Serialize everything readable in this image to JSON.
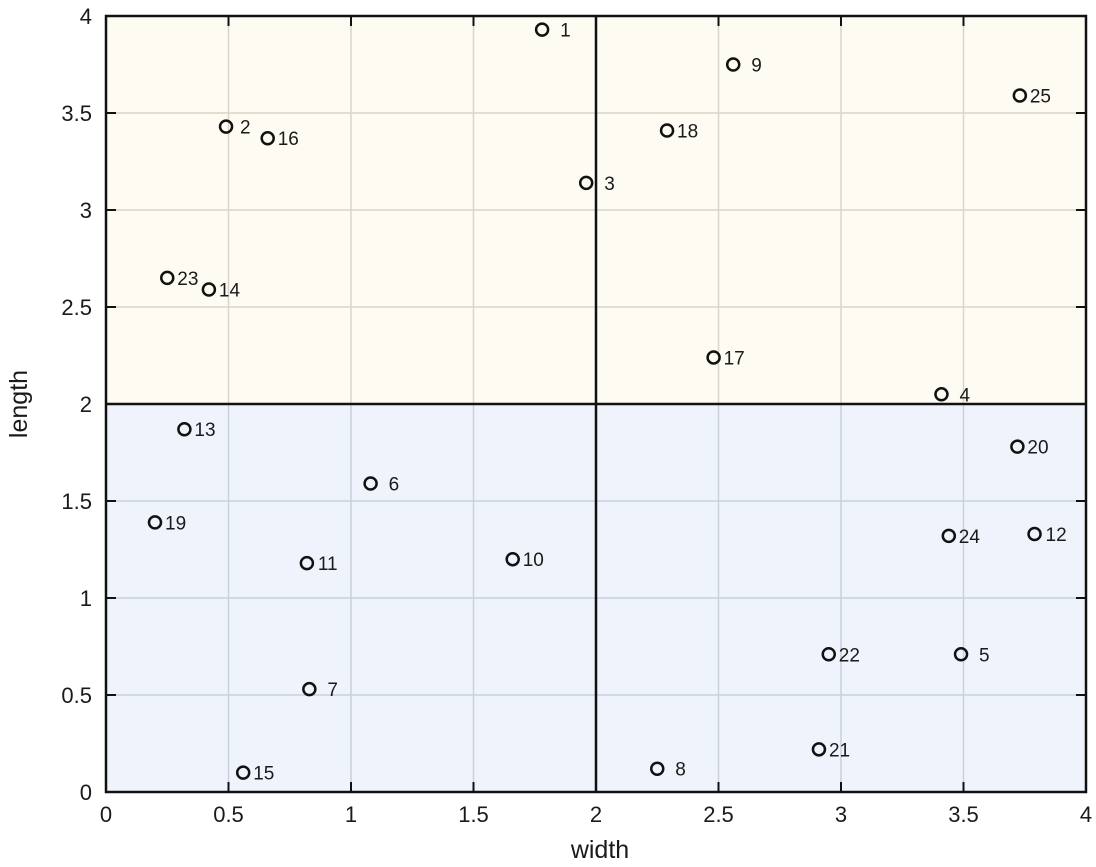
{
  "chart_data": {
    "type": "scatter",
    "title": "",
    "xlabel": "width",
    "ylabel": "length",
    "xlim": [
      0,
      4
    ],
    "ylim": [
      0,
      4
    ],
    "xticks": [
      "0",
      "0.5",
      "1",
      "1.5",
      "2",
      "2.5",
      "3",
      "3.5",
      "4"
    ],
    "yticks": [
      "0",
      "0.5",
      "1",
      "1.5",
      "2",
      "2.5",
      "3",
      "3.5",
      "4"
    ],
    "grid": true,
    "divider": {
      "x": 2,
      "y": 2
    },
    "regions": [
      {
        "name": "upper",
        "y_range": [
          2,
          4
        ],
        "color": "#fdfbf2"
      },
      {
        "name": "lower",
        "y_range": [
          0,
          2
        ],
        "color": "#eff4fc"
      }
    ],
    "points": [
      {
        "id": "1",
        "x": 1.78,
        "y": 3.93
      },
      {
        "id": "2",
        "x": 0.49,
        "y": 3.43
      },
      {
        "id": "3",
        "x": 1.96,
        "y": 3.14
      },
      {
        "id": "4",
        "x": 3.41,
        "y": 2.05
      },
      {
        "id": "5",
        "x": 3.49,
        "y": 0.71
      },
      {
        "id": "6",
        "x": 1.08,
        "y": 1.59
      },
      {
        "id": "7",
        "x": 0.83,
        "y": 0.53
      },
      {
        "id": "8",
        "x": 2.25,
        "y": 0.12
      },
      {
        "id": "9",
        "x": 2.56,
        "y": 3.75
      },
      {
        "id": "10",
        "x": 1.66,
        "y": 1.2
      },
      {
        "id": "11",
        "x": 0.82,
        "y": 1.18
      },
      {
        "id": "12",
        "x": 3.79,
        "y": 1.33
      },
      {
        "id": "13",
        "x": 0.32,
        "y": 1.87
      },
      {
        "id": "14",
        "x": 0.42,
        "y": 2.59
      },
      {
        "id": "15",
        "x": 0.56,
        "y": 0.1
      },
      {
        "id": "16",
        "x": 0.66,
        "y": 3.37
      },
      {
        "id": "17",
        "x": 2.48,
        "y": 2.24
      },
      {
        "id": "18",
        "x": 2.29,
        "y": 3.41
      },
      {
        "id": "19",
        "x": 0.2,
        "y": 1.39
      },
      {
        "id": "20",
        "x": 3.72,
        "y": 1.78
      },
      {
        "id": "21",
        "x": 2.91,
        "y": 0.22
      },
      {
        "id": "22",
        "x": 2.95,
        "y": 0.71
      },
      {
        "id": "23",
        "x": 0.25,
        "y": 2.65
      },
      {
        "id": "24",
        "x": 3.44,
        "y": 1.32
      },
      {
        "id": "25",
        "x": 3.73,
        "y": 3.59
      }
    ],
    "label_offsets": {
      "1": 18,
      "2": 14,
      "3": 18,
      "4": 18,
      "5": 18,
      "6": 18,
      "7": 18,
      "8": 18,
      "9": 18,
      "10": 10,
      "11": 11,
      "12": 11,
      "13": 10,
      "14": 10,
      "15": 10,
      "16": 10,
      "17": 10,
      "18": 10,
      "19": 10,
      "20": 10,
      "21": 10,
      "22": 10,
      "23": 10,
      "24": 10,
      "25": 10
    }
  },
  "colors": {
    "upper_bg": "#fdfbf2",
    "lower_bg": "#eff4fc",
    "upper_grid": "#d9d5c8",
    "lower_grid": "#c9cfdc",
    "axis": "#111111",
    "marker": "#111111"
  }
}
